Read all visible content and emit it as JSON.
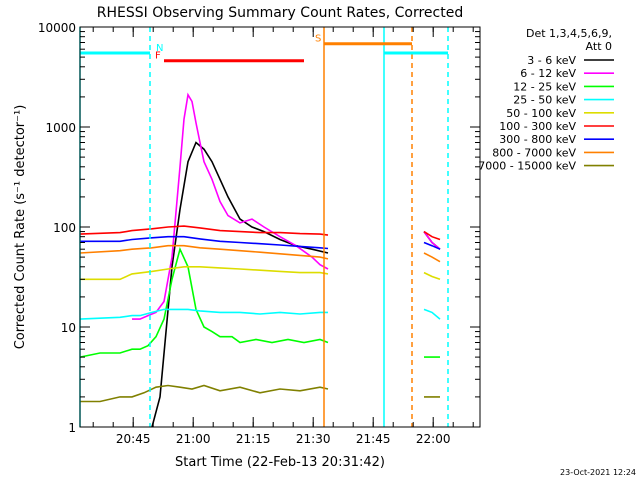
{
  "chart_data": {
    "type": "line",
    "title": "RHESSI Observing Summary Count Rates, Corrected",
    "xlabel": "Start Time (22-Feb-13 20:31:42)",
    "ylabel": "Corrected Count Rate (s⁻¹ detector⁻¹)",
    "yscale": "log",
    "ylim": [
      1,
      10000
    ],
    "xlim": [
      0,
      100
    ],
    "x_ticks": [
      {
        "label": "20:45",
        "x": 13.3
      },
      {
        "label": "21:00",
        "x": 28.3
      },
      {
        "label": "21:15",
        "x": 43.3
      },
      {
        "label": "21:30",
        "x": 58.3
      },
      {
        "label": "21:45",
        "x": 73.3
      },
      {
        "label": "22:00",
        "x": 88.3
      }
    ],
    "y_ticks": [
      {
        "label": "1",
        "y": 1
      },
      {
        "label": "10",
        "y": 10
      },
      {
        "label": "100",
        "y": 100
      },
      {
        "label": "1000",
        "y": 1000
      },
      {
        "label": "10000",
        "y": 10000
      }
    ],
    "legend_header": [
      "Det 1,3,4,5,6,9,",
      "Att 0"
    ],
    "legend_position": "right",
    "timestamp": "23-Oct-2021 12:24",
    "series": [
      {
        "name": "3 - 6 keV",
        "color": "#000000",
        "x": [
          18,
          20,
          23,
          25,
          27,
          29,
          31,
          33,
          35,
          37,
          40,
          43,
          46,
          50,
          54,
          58,
          62,
          63,
          84,
          86,
          88,
          90
        ],
        "y": [
          1,
          2,
          40,
          150,
          450,
          700,
          600,
          450,
          300,
          200,
          120,
          100,
          90,
          75,
          65,
          60,
          55,
          null,
          null,
          90,
          70,
          60
        ]
      },
      {
        "name": "6 - 12 keV",
        "color": "#ff00ff",
        "x": [
          13,
          15,
          17,
          19,
          21,
          23,
          25,
          26,
          27,
          28,
          29,
          30,
          31,
          33,
          35,
          37,
          40,
          43,
          46,
          50,
          54,
          58,
          60,
          62,
          63,
          84,
          86,
          88,
          90
        ],
        "y": [
          12,
          12,
          13,
          14,
          18,
          50,
          400,
          1200,
          2100,
          1800,
          1100,
          700,
          450,
          300,
          180,
          130,
          110,
          120,
          100,
          80,
          65,
          50,
          42,
          38,
          null,
          null,
          90,
          70,
          60
        ]
      },
      {
        "name": "12 - 25 keV",
        "color": "#00ff00",
        "x": [
          0,
          5,
          10,
          13,
          15,
          17,
          19,
          21,
          23,
          25,
          27,
          29,
          31,
          33,
          35,
          38,
          40,
          44,
          48,
          52,
          56,
          60,
          62,
          63,
          84,
          86,
          88,
          90
        ],
        "y": [
          5,
          5.5,
          5.5,
          6,
          6,
          6.5,
          8,
          12,
          30,
          60,
          40,
          15,
          10,
          9,
          8,
          8,
          7,
          7.5,
          7,
          7.5,
          7,
          7.5,
          7,
          null,
          null,
          5,
          5,
          5
        ]
      },
      {
        "name": "25 - 50 keV",
        "color": "#00ffff",
        "x": [
          0,
          10,
          13,
          15,
          18,
          21,
          24,
          27,
          30,
          35,
          40,
          45,
          50,
          55,
          60,
          62,
          63,
          84,
          86,
          88,
          90
        ],
        "y": [
          12,
          12.5,
          13,
          13,
          14,
          15,
          15,
          15,
          14.5,
          14,
          14,
          13.5,
          14,
          13.5,
          14,
          14,
          null,
          null,
          15,
          14,
          12
        ]
      },
      {
        "name": "50 - 100 keV",
        "color": "#dddd00",
        "x": [
          0,
          10,
          13,
          18,
          22,
          26,
          30,
          35,
          40,
          45,
          50,
          55,
          60,
          62,
          63,
          84,
          86,
          88,
          90
        ],
        "y": [
          30,
          30,
          34,
          36,
          38,
          40,
          40,
          39,
          38,
          37,
          36,
          35,
          35,
          34,
          null,
          null,
          35,
          32,
          30
        ]
      },
      {
        "name": "100 - 300 keV",
        "color": "#ff0000",
        "x": [
          0,
          10,
          13,
          18,
          22,
          26,
          30,
          35,
          40,
          45,
          50,
          55,
          60,
          62,
          63,
          84,
          86,
          88,
          90
        ],
        "y": [
          85,
          88,
          92,
          96,
          100,
          102,
          98,
          92,
          90,
          88,
          88,
          86,
          85,
          83,
          null,
          null,
          90,
          80,
          75
        ]
      },
      {
        "name": "300 - 800 keV",
        "color": "#0000ff",
        "x": [
          0,
          10,
          13,
          18,
          22,
          26,
          30,
          35,
          40,
          45,
          50,
          55,
          60,
          62,
          63,
          84,
          86,
          88,
          90
        ],
        "y": [
          72,
          72,
          75,
          78,
          80,
          80,
          76,
          72,
          70,
          68,
          66,
          64,
          62,
          61,
          null,
          null,
          70,
          65,
          60
        ]
      },
      {
        "name": "800 - 7000 keV",
        "color": "#ff8000",
        "x": [
          0,
          10,
          13,
          18,
          22,
          26,
          30,
          35,
          40,
          45,
          50,
          55,
          60,
          62,
          63,
          84,
          86,
          88,
          90
        ],
        "y": [
          55,
          58,
          60,
          62,
          65,
          65,
          62,
          60,
          58,
          56,
          54,
          52,
          50,
          48,
          null,
          null,
          55,
          50,
          45
        ]
      },
      {
        "name": "7000 - 15000 keV",
        "color": "#808000",
        "x": [
          0,
          5,
          10,
          13,
          16,
          19,
          22,
          25,
          28,
          31,
          35,
          40,
          45,
          50,
          55,
          60,
          62,
          63,
          84,
          86,
          88,
          90
        ],
        "y": [
          1.8,
          1.8,
          2,
          2,
          2.2,
          2.5,
          2.6,
          2.5,
          2.4,
          2.6,
          2.3,
          2.5,
          2.2,
          2.4,
          2.3,
          2.5,
          2.4,
          null,
          null,
          2,
          2,
          2
        ]
      }
    ],
    "state_bars": [
      {
        "label": "N",
        "color": "#00ffff",
        "x": [
          0,
          17.5
        ],
        "y": 5500
      },
      {
        "label": "",
        "color": "#00ffff",
        "x": [
          76,
          92
        ],
        "y": 5500
      },
      {
        "label": "F",
        "color": "#ff0000",
        "x": [
          21,
          56
        ],
        "y": 4600
      },
      {
        "label": "S",
        "color": "#ff8000",
        "x": [
          61,
          83
        ],
        "y": 6800
      }
    ],
    "vertical_lines": [
      {
        "color": "#00ffff",
        "x": 0,
        "style": "solid"
      },
      {
        "color": "#00ffff",
        "x": 17.5,
        "style": "dashed"
      },
      {
        "color": "#ff8000",
        "x": 61,
        "style": "solid"
      },
      {
        "color": "#00ffff",
        "x": 76,
        "style": "solid"
      },
      {
        "color": "#ff8000",
        "x": 83,
        "style": "dashed"
      },
      {
        "color": "#00ffff",
        "x": 92,
        "style": "dashed"
      }
    ]
  }
}
